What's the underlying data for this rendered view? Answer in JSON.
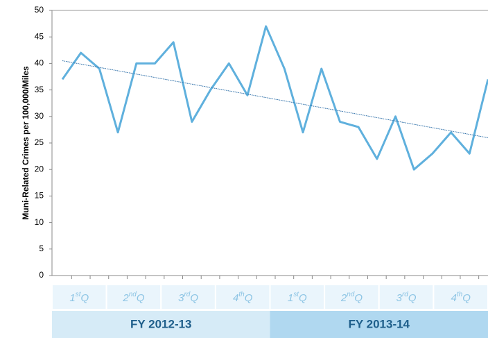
{
  "chart_data": {
    "type": "line",
    "y_label": "Muni-Related Crimes per 100,000/Miles",
    "categories": [
      null,
      null,
      null,
      null,
      null,
      null,
      null,
      null,
      null,
      null,
      null,
      null,
      null,
      null,
      null,
      null,
      null,
      null,
      null,
      null,
      null,
      null,
      null,
      null
    ],
    "series": [
      {
        "name": null,
        "color": "#5fb0dd",
        "values": [
          37,
          42,
          39,
          27,
          40,
          40,
          44,
          29,
          35,
          40,
          34,
          47,
          39,
          27,
          39,
          29,
          28,
          22,
          30,
          20,
          23,
          27,
          23,
          37
        ]
      }
    ],
    "trendline": {
      "type": "linear",
      "color": "#2e6fa8"
    },
    "ylim": [
      0,
      50
    ],
    "yticks": [
      0,
      5,
      10,
      15,
      20,
      25,
      30,
      35,
      40,
      45,
      50
    ],
    "quarters": [
      {
        "n": "1",
        "sup": "st",
        "q": "Q"
      },
      {
        "n": "2",
        "sup": "nd",
        "q": "Q"
      },
      {
        "n": "3",
        "sup": "rd",
        "q": "Q"
      },
      {
        "n": "4",
        "sup": "th",
        "q": "Q"
      },
      {
        "n": "1",
        "sup": "st",
        "q": "Q"
      },
      {
        "n": "2",
        "sup": "nd",
        "q": "Q"
      },
      {
        "n": "3",
        "sup": "rd",
        "q": "Q"
      },
      {
        "n": "4",
        "sup": "th",
        "q": "Q"
      }
    ],
    "fiscal_years": [
      {
        "label": "FY 2012-13",
        "color": "#d6ebf7"
      },
      {
        "label": "FY 2013-14",
        "color": "#b0d8f0"
      }
    ]
  }
}
